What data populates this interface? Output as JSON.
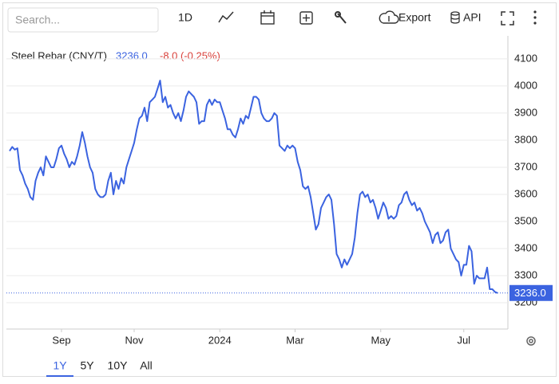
{
  "toolbar": {
    "search_placeholder": "Search...",
    "interval": "1D",
    "export": "Export",
    "api": "API"
  },
  "chart_data": {
    "type": "line",
    "title": "Steel Rebar (CNY/T)",
    "last": {
      "value": 3236,
      "label": "3236.0"
    },
    "change": "-8.0 (-0.25%)",
    "series": [
      {
        "name": "Steel Rebar",
        "color": "#3b63e0",
        "values": [
          3760,
          3775,
          3765,
          3770,
          3690,
          3670,
          3640,
          3620,
          3590,
          3580,
          3650,
          3680,
          3700,
          3670,
          3740,
          3720,
          3700,
          3700,
          3730,
          3770,
          3780,
          3750,
          3730,
          3700,
          3720,
          3710,
          3740,
          3780,
          3830,
          3790,
          3740,
          3700,
          3680,
          3620,
          3600,
          3590,
          3590,
          3600,
          3650,
          3680,
          3600,
          3650,
          3620,
          3660,
          3640,
          3700,
          3730,
          3760,
          3790,
          3840,
          3880,
          3890,
          3920,
          3870,
          3940,
          3950,
          3960,
          3990,
          4020,
          3940,
          3960,
          3920,
          3930,
          3900,
          3880,
          3900,
          3870,
          3910,
          3960,
          3980,
          3970,
          3960,
          3940,
          3860,
          3870,
          3870,
          3930,
          3950,
          3930,
          3950,
          3940,
          3940,
          3910,
          3880,
          3840,
          3840,
          3820,
          3810,
          3840,
          3880,
          3860,
          3890,
          3880,
          3920,
          3960,
          3960,
          3950,
          3900,
          3880,
          3870,
          3870,
          3880,
          3900,
          3890,
          3780,
          3770,
          3760,
          3780,
          3770,
          3780,
          3770,
          3720,
          3690,
          3630,
          3620,
          3630,
          3590,
          3530,
          3470,
          3490,
          3550,
          3570,
          3590,
          3600,
          3580,
          3490,
          3380,
          3360,
          3330,
          3360,
          3340,
          3360,
          3380,
          3440,
          3530,
          3600,
          3610,
          3590,
          3600,
          3570,
          3580,
          3550,
          3510,
          3540,
          3570,
          3550,
          3510,
          3520,
          3510,
          3520,
          3560,
          3570,
          3600,
          3610,
          3580,
          3560,
          3570,
          3540,
          3550,
          3530,
          3500,
          3480,
          3460,
          3420,
          3450,
          3460,
          3420,
          3430,
          3460,
          3470,
          3400,
          3380,
          3360,
          3350,
          3300,
          3340,
          3340,
          3410,
          3390,
          3270,
          3300,
          3290,
          3290,
          3290,
          3330,
          3250,
          3250,
          3240,
          3236
        ]
      }
    ],
    "xticks": [
      {
        "value": 20,
        "label": "Sep"
      },
      {
        "value": 48,
        "label": "Nov"
      },
      {
        "value": 81,
        "label": "2024"
      },
      {
        "value": 110,
        "label": "Mar"
      },
      {
        "value": 143,
        "label": "May"
      },
      {
        "value": 175,
        "label": "Jul"
      }
    ],
    "ylim": [
      3103,
      4185
    ],
    "yticks": [
      3200,
      3300,
      3400,
      3500,
      3600,
      3700,
      3800,
      3900,
      4000,
      4100
    ],
    "grid": true,
    "ranges": [
      "1Y",
      "5Y",
      "10Y",
      "All"
    ],
    "selected_range": 0
  }
}
